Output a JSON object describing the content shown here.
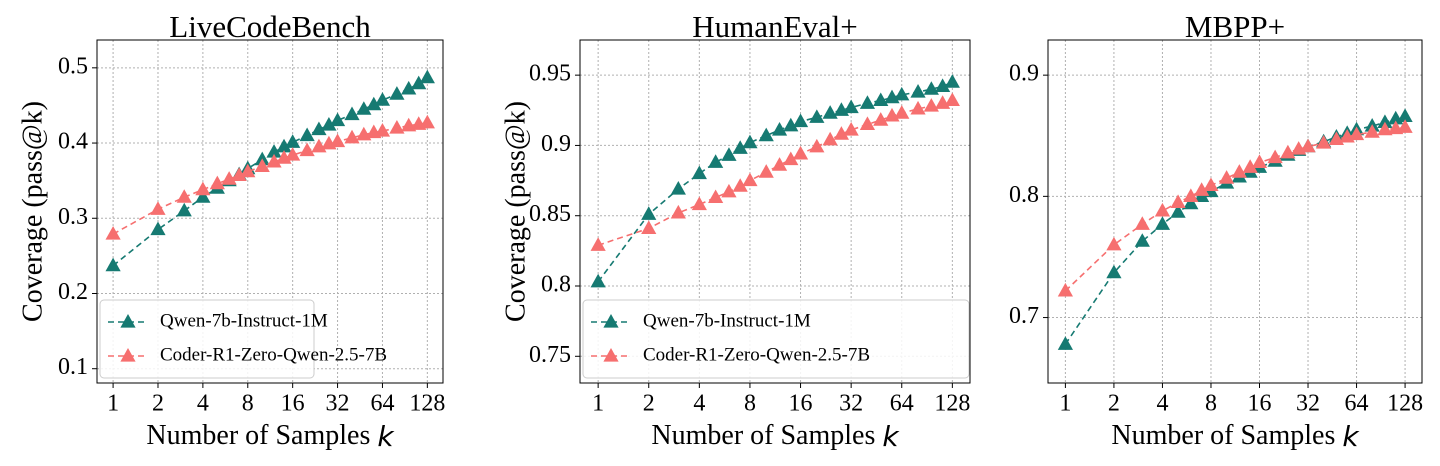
{
  "chart_data": [
    {
      "type": "line",
      "title": "LiveCodeBench",
      "ylabel": "Coverage (pass@k)",
      "xlabel": {
        "text": "Number of Samples",
        "variable": "k"
      },
      "x": [
        1,
        2,
        3,
        4,
        5,
        6,
        7,
        8,
        10,
        12,
        14,
        16,
        20,
        24,
        28,
        32,
        40,
        48,
        56,
        64,
        80,
        96,
        112,
        128
      ],
      "xscale": "log",
      "xlim": [
        0.78,
        163
      ],
      "xticks": [
        1,
        2,
        4,
        8,
        16,
        32,
        64,
        128
      ],
      "ylim": [
        0.081,
        0.537
      ],
      "yticks": [
        0.1,
        0.2,
        0.3,
        0.4,
        0.5
      ],
      "grid": true,
      "legend": "lower left",
      "marker": "triangle",
      "series": [
        {
          "name": "Qwen-7b-Instruct-1M",
          "color": "#167a72",
          "values": [
            0.237,
            0.285,
            0.31,
            0.328,
            0.34,
            0.35,
            0.358,
            0.366,
            0.378,
            0.388,
            0.395,
            0.401,
            0.41,
            0.418,
            0.424,
            0.43,
            0.438,
            0.445,
            0.451,
            0.457,
            0.465,
            0.472,
            0.479,
            0.487
          ]
        },
        {
          "name": "Coder-R1-Zero-Qwen-2.5-7B",
          "color": "#f66f6f",
          "values": [
            0.279,
            0.312,
            0.328,
            0.338,
            0.346,
            0.352,
            0.357,
            0.362,
            0.369,
            0.375,
            0.38,
            0.384,
            0.39,
            0.395,
            0.399,
            0.402,
            0.407,
            0.411,
            0.414,
            0.416,
            0.42,
            0.423,
            0.425,
            0.427
          ]
        }
      ]
    },
    {
      "type": "line",
      "title": "HumanEval+",
      "ylabel": "Coverage (pass@k)",
      "xlabel": {
        "text": "Number of Samples",
        "variable": "k"
      },
      "x": [
        1,
        2,
        3,
        4,
        5,
        6,
        7,
        8,
        10,
        12,
        14,
        16,
        20,
        24,
        28,
        32,
        40,
        48,
        56,
        64,
        80,
        96,
        112,
        128
      ],
      "xscale": "log",
      "xlim": [
        0.78,
        163
      ],
      "xticks": [
        1,
        2,
        4,
        8,
        16,
        32,
        64,
        128
      ],
      "ylim": [
        0.731,
        0.975
      ],
      "yticks": [
        0.75,
        0.8,
        0.85,
        0.9,
        0.95
      ],
      "grid": true,
      "legend": "lower left",
      "marker": "triangle",
      "series": [
        {
          "name": "Qwen-7b-Instruct-1M",
          "color": "#167a72",
          "values": [
            0.803,
            0.851,
            0.869,
            0.88,
            0.888,
            0.893,
            0.898,
            0.902,
            0.907,
            0.911,
            0.914,
            0.917,
            0.92,
            0.923,
            0.925,
            0.927,
            0.93,
            0.932,
            0.934,
            0.936,
            0.938,
            0.94,
            0.942,
            0.945
          ]
        },
        {
          "name": "Coder-R1-Zero-Qwen-2.5-7B",
          "color": "#f66f6f",
          "values": [
            0.829,
            0.841,
            0.852,
            0.858,
            0.863,
            0.867,
            0.871,
            0.875,
            0.881,
            0.886,
            0.89,
            0.894,
            0.899,
            0.904,
            0.908,
            0.911,
            0.915,
            0.918,
            0.921,
            0.923,
            0.926,
            0.928,
            0.93,
            0.932
          ]
        }
      ]
    },
    {
      "type": "line",
      "title": "MBPP+",
      "xlabel": {
        "text": "Number of Samples",
        "variable": "k"
      },
      "x": [
        1,
        2,
        3,
        4,
        5,
        6,
        7,
        8,
        10,
        12,
        14,
        16,
        20,
        24,
        28,
        32,
        40,
        48,
        56,
        64,
        80,
        96,
        112,
        128
      ],
      "xscale": "log",
      "xlim": [
        0.78,
        163
      ],
      "xticks": [
        1,
        2,
        4,
        8,
        16,
        32,
        64,
        128
      ],
      "ylim": [
        0.646,
        0.929
      ],
      "yticks": [
        0.7,
        0.8,
        0.9
      ],
      "grid": true,
      "marker": "triangle",
      "series": [
        {
          "name": "Qwen-7b-Instruct-1M",
          "color": "#167a72",
          "values": [
            0.678,
            0.737,
            0.763,
            0.777,
            0.787,
            0.794,
            0.8,
            0.804,
            0.811,
            0.816,
            0.82,
            0.824,
            0.829,
            0.834,
            0.838,
            0.841,
            0.845,
            0.849,
            0.852,
            0.855,
            0.858,
            0.861,
            0.864,
            0.866
          ]
        },
        {
          "name": "Coder-R1-Zero-Qwen-2.5-7B",
          "color": "#f66f6f",
          "values": [
            0.722,
            0.76,
            0.777,
            0.788,
            0.795,
            0.8,
            0.805,
            0.809,
            0.815,
            0.82,
            0.824,
            0.828,
            0.832,
            0.836,
            0.839,
            0.841,
            0.844,
            0.847,
            0.849,
            0.851,
            0.853,
            0.855,
            0.856,
            0.857
          ]
        }
      ]
    }
  ]
}
